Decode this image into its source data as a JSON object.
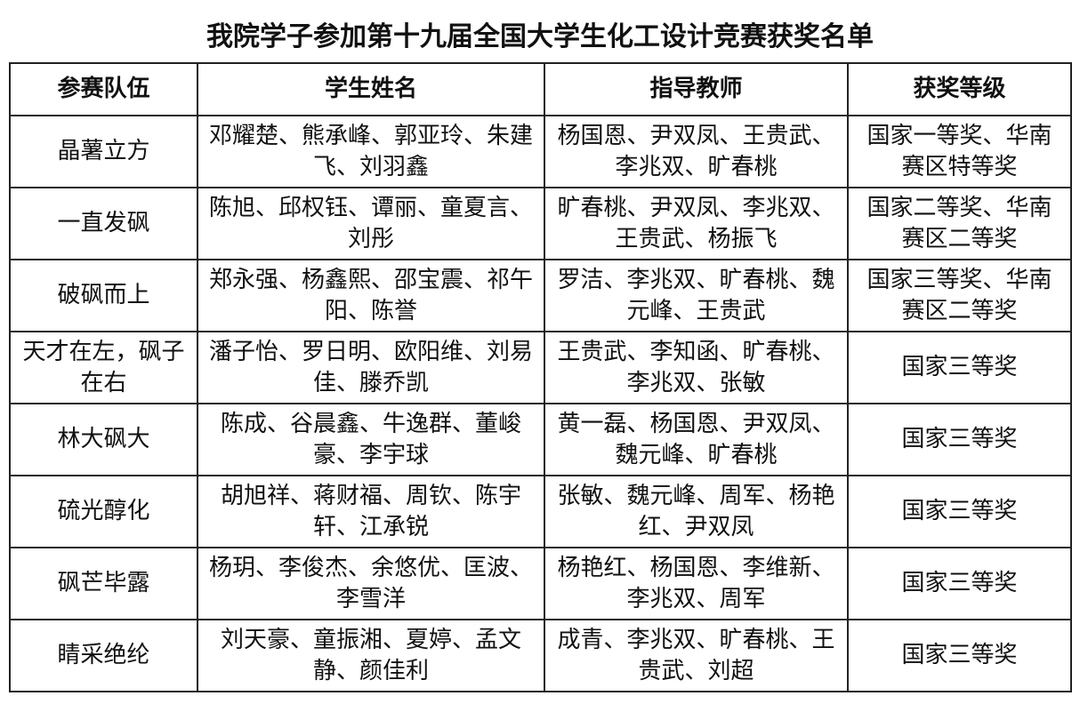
{
  "title": "我院学子参加第十九届全国大学生化工设计竞赛获奖名单",
  "headers": [
    "参赛队伍",
    "学生姓名",
    "指导教师",
    "获奖等级"
  ],
  "rows": [
    {
      "team": "晶薯立方",
      "students": "邓耀楚、熊承峰、郭亚玲、朱建飞、刘羽鑫",
      "teachers": "杨国恩、尹双凤、王贵武、李兆双、旷春桃",
      "award": "国家一等奖、华南赛区特等奖"
    },
    {
      "team": "一直发砜",
      "students": "陈旭、邱权钰、谭丽、童夏言、刘彤",
      "teachers": "旷春桃、尹双凤、李兆双、王贵武、杨振飞",
      "award": "国家二等奖、华南赛区二等奖"
    },
    {
      "team": "破砜而上",
      "students": "郑永强、杨鑫熙、邵宝震、祁午阳、陈誉",
      "teachers": "罗洁、李兆双、旷春桃、魏元峰、王贵武",
      "award": "国家三等奖、华南赛区二等奖"
    },
    {
      "team": "天才在左，砜子在右",
      "students": "潘子怡、罗日明、欧阳维、刘易佳、滕乔凯",
      "teachers": "王贵武、李知函、旷春桃、李兆双、张敏",
      "award": "国家三等奖"
    },
    {
      "team": "林大砜大",
      "students": "陈成、谷晨鑫、牛逸群、董峻豪、李宇球",
      "teachers": "黄一磊、杨国恩、尹双凤、魏元峰、旷春桃",
      "award": "国家三等奖"
    },
    {
      "team": "硫光醇化",
      "students": "胡旭祥、蒋财福、周钦、陈宇轩、江承锐",
      "teachers": "张敏、魏元峰、周军、杨艳红、尹双凤",
      "award": "国家三等奖"
    },
    {
      "team": "砜芒毕露",
      "students": "杨玥、李俊杰、余悠优、匡波、李雪洋",
      "teachers": "杨艳红、杨国恩、李维新、李兆双、周军",
      "award": "国家三等奖"
    },
    {
      "team": "睛采绝纶",
      "students": "刘天豪、童振湘、夏婷、孟文静、颜佳利",
      "teachers": "成青、李兆双、旷春桃、王贵武、刘超",
      "award": "国家三等奖"
    }
  ]
}
